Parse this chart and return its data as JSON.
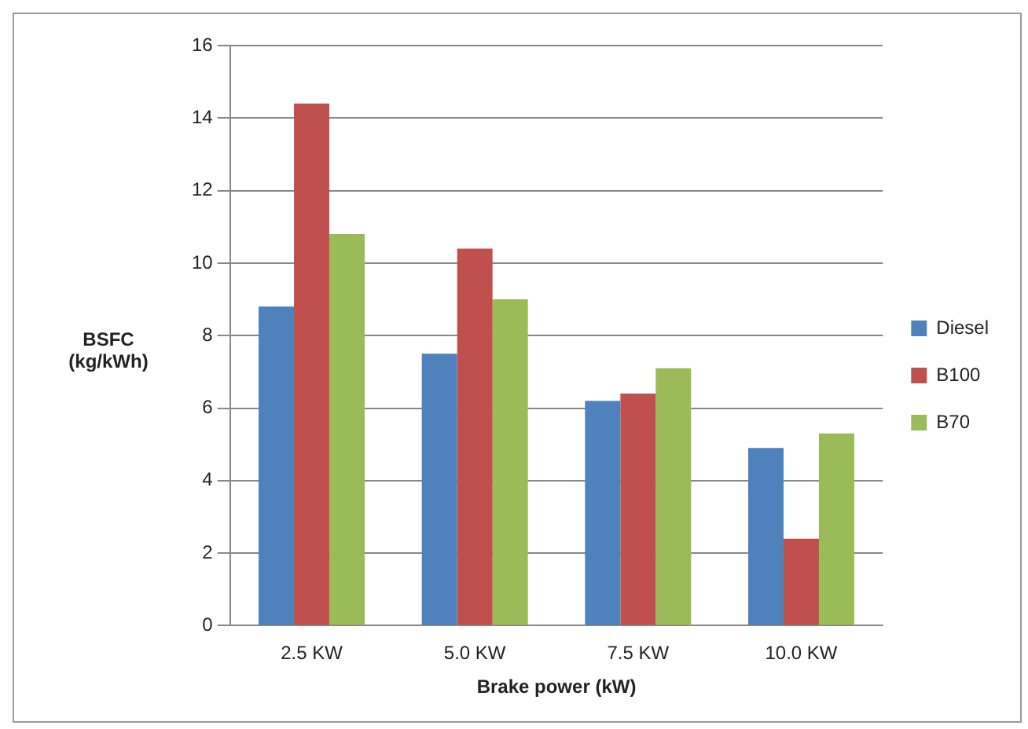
{
  "chart_data": {
    "type": "bar",
    "xlabel": "Brake power (kW)",
    "ylabel": "BSFC (kg/kWh)",
    "categories": [
      "2.5 KW",
      "5.0 KW",
      "7.5 KW",
      "10.0 KW"
    ],
    "series": [
      {
        "name": "Diesel",
        "color": "#4f81bd",
        "values": [
          8.8,
          7.5,
          6.2,
          4.9
        ]
      },
      {
        "name": "B100",
        "color": "#c0504d",
        "values": [
          14.4,
          10.4,
          6.4,
          2.4
        ]
      },
      {
        "name": "B70",
        "color": "#9bbb59",
        "values": [
          10.8,
          9.0,
          7.1,
          5.3
        ]
      }
    ],
    "ylim": [
      0,
      16
    ],
    "yticks": [
      0,
      2,
      4,
      6,
      8,
      10,
      12,
      14,
      16
    ],
    "grid": "y",
    "legend": "right"
  }
}
